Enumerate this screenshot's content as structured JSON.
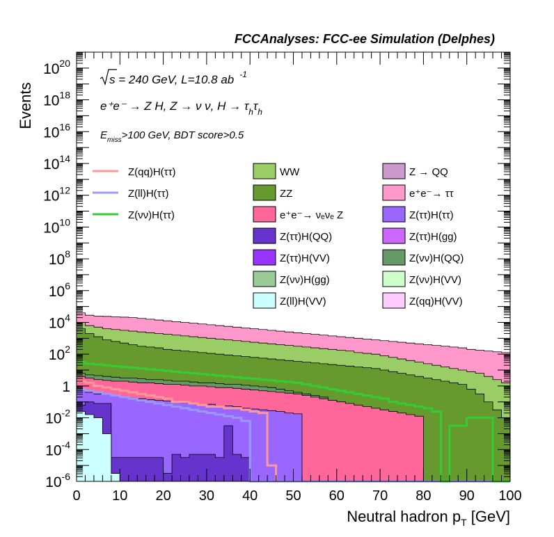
{
  "header": "FCCAnalyses: FCC-ee Simulation (Delphes)",
  "annotations": {
    "sqrt_s": "s",
    "energy_lumi": " = 240 GeV, L=10.8 ab",
    "lumi_exp": "-1",
    "process_line": "e⁺e⁻ → Z H, Z → ν ν, H → τ",
    "tau_sub": "h",
    "tau2": "τ",
    "tau2_sub": "h",
    "cut_E": "E",
    "cut_E_sub": "miss",
    "cut_rest": ">100 GeV, BDT score>0.5"
  },
  "colors": {
    "WW": "#9ACD66",
    "ZZ": "#66992E",
    "Z_QQ": "#CC99CC",
    "ee_tautau": "#FF99CC",
    "nuenue_Z": "#FF6699",
    "Ztautau_Htautau": "#9966FF",
    "Ztautau_HQQ": "#6633CC",
    "Ztautau_Hgg": "#CC66FF",
    "Ztautau_HVV": "#9933FF",
    "Znunu_HQQ": "#669966",
    "Znunu_Hgg": "#99CC99",
    "Znunu_HVV": "#CCFFCC",
    "Zll_HVV": "#CCFFFF",
    "Zqq_HVV": "#FFCCFF",
    "sig_qq": "#FF9999",
    "sig_ll": "#9999FF",
    "sig_nunu": "#33CC33"
  },
  "legend": {
    "lines": [
      {
        "label": "Z(qq)H(ττ)",
        "color": "#FF9999"
      },
      {
        "label": "Z(ll)H(ττ)",
        "color": "#9999FF"
      },
      {
        "label": "Z(νν)H(ττ)",
        "color": "#33CC33"
      }
    ],
    "boxes_col1": [
      {
        "label": "WW",
        "color": "#9ACD66"
      },
      {
        "label": "ZZ",
        "color": "#66992E"
      },
      {
        "label": "e⁺e⁻→ νₑνₑ Z",
        "color": "#FF6699"
      },
      {
        "label": "Z(ττ)H(QQ)",
        "color": "#6633CC"
      },
      {
        "label": "Z(ττ)H(VV)",
        "color": "#9933FF"
      },
      {
        "label": "Z(νν)H(gg)",
        "color": "#99CC99"
      },
      {
        "label": "Z(ll)H(VV)",
        "color": "#CCFFFF"
      }
    ],
    "boxes_col2": [
      {
        "label": "Z → QQ",
        "color": "#CC99CC"
      },
      {
        "label": "e⁺e⁻→ ττ",
        "color": "#FF99CC"
      },
      {
        "label": "Z(ττ)H(ττ)",
        "color": "#9966FF"
      },
      {
        "label": "Z(ττ)H(gg)",
        "color": "#CC66FF"
      },
      {
        "label": "Z(νν)H(QQ)",
        "color": "#669966"
      },
      {
        "label": "Z(νν)H(VV)",
        "color": "#CCFFCC"
      },
      {
        "label": "Z(qq)H(VV)",
        "color": "#FFCCFF"
      }
    ]
  },
  "chart_data": {
    "type": "area",
    "title": "",
    "xlabel": "Neutral hadron p",
    "xlabel_sub": "T",
    "xlabel_unit": " [GeV]",
    "ylabel": "Events",
    "xlim": [
      0,
      100
    ],
    "ylim": [
      1e-06,
      1e+21
    ],
    "ylog": true,
    "bins": 50,
    "xticks": [
      "0",
      "10",
      "20",
      "30",
      "40",
      "50",
      "60",
      "70",
      "80",
      "90",
      "100"
    ],
    "yticks": [
      {
        "v": 1e-06,
        "base": "10",
        "exp": "-6"
      },
      {
        "v": 0.0001,
        "base": "10",
        "exp": "-4"
      },
      {
        "v": 0.01,
        "base": "10",
        "exp": "-2"
      },
      {
        "v": 1,
        "base": "1",
        "exp": ""
      },
      {
        "v": 100.0,
        "base": "10",
        "exp": "2"
      },
      {
        "v": 10000.0,
        "base": "10",
        "exp": "4"
      },
      {
        "v": 1000000.0,
        "base": "10",
        "exp": "6"
      },
      {
        "v": 100000000.0,
        "base": "10",
        "exp": "8"
      },
      {
        "v": 10000000000.0,
        "base": "10",
        "exp": "10"
      },
      {
        "v": 1000000000000.0,
        "base": "10",
        "exp": "12"
      },
      {
        "v": 100000000000000.0,
        "base": "10",
        "exp": "14"
      },
      {
        "v": 1e+16,
        "base": "10",
        "exp": "16"
      },
      {
        "v": 1e+18,
        "base": "10",
        "exp": "18"
      },
      {
        "v": 1e+20,
        "base": "10",
        "exp": "20"
      }
    ],
    "stack_totals_log10": [
      4.6,
      4.45,
      4.4,
      4.38,
      4.35,
      4.33,
      4.3,
      4.25,
      4.2,
      4.15,
      4.1,
      4.05,
      4.0,
      3.95,
      3.9,
      3.85,
      3.8,
      3.75,
      3.7,
      3.65,
      3.6,
      3.55,
      3.5,
      3.45,
      3.4,
      3.35,
      3.3,
      3.25,
      3.2,
      3.15,
      3.1,
      3.05,
      3.0,
      2.95,
      2.9,
      2.85,
      2.8,
      2.75,
      2.7,
      2.65,
      2.6,
      2.55,
      2.5,
      2.45,
      2.4,
      2.3,
      2.25,
      2.2,
      2.15,
      2.1
    ],
    "layers_log10": [
      {
        "name": "Z(ll)H(VV)",
        "color": "#CCFFFF",
        "values": [
          -1.6,
          -1.8,
          -2.0,
          -3.0,
          -5.5,
          -6.5,
          -6.5,
          -6.5,
          -6.5,
          -6.5,
          -6.5,
          -6.5,
          -6.5,
          -6.5,
          -6.5,
          -6.5,
          -6.5,
          -6.5,
          -6.5,
          -6.5,
          -6.5,
          -6.5,
          -6.5,
          -6.5,
          -6.5,
          -6.5,
          -6.5,
          -6.5,
          -6.5,
          -6.5,
          -6.5,
          -6.5,
          -6.5,
          -6.5,
          -6.5,
          -6.5,
          -6.5,
          -6.5,
          -6.5,
          -6.5,
          -6.5,
          -6.5,
          -6.5,
          -6.5,
          -6.5,
          -6.5,
          -6.5,
          -6.5,
          -6.5,
          -6.5
        ]
      },
      {
        "name": "Z(ττ)H(QQ)",
        "color": "#6633CC",
        "values": [
          -1.2,
          -1.0,
          -1.1,
          -1.1,
          -4.5,
          -4.5,
          -4.5,
          -4.5,
          -4.5,
          -4.5,
          -5.5,
          -4.3,
          -4.5,
          -4.3,
          -4.3,
          -4.3,
          -4.5,
          -2.5,
          -4.3,
          -4.5,
          -6.5,
          -6.5,
          -6.5,
          -6.5,
          -6.5,
          -6.5,
          -6.5,
          -6.5,
          -6.5,
          -6.5,
          -6.5,
          -6.5,
          -6.5,
          -6.5,
          -6.5,
          -6.5,
          -6.5,
          -6.5,
          -6.5,
          -6.5,
          -6.5,
          -6.5,
          -6.5,
          -6.5,
          -6.5,
          -6.5,
          -6.5,
          -6.5,
          -6.5,
          -6.5
        ]
      },
      {
        "name": "Z(ττ)H(ττ)",
        "color": "#9966FF",
        "values": [
          -0.2,
          -0.4,
          -0.5,
          -0.55,
          -0.6,
          -0.7,
          -0.75,
          -0.8,
          -0.85,
          -0.9,
          -0.95,
          -1.0,
          -1.05,
          -1.1,
          -1.2,
          -1.15,
          -1.3,
          -1.25,
          -1.3,
          -1.4,
          -1.45,
          -1.5,
          -1.55,
          -1.6,
          -1.7,
          -1.75,
          -6.5,
          -6.5,
          -6.5,
          -6.5,
          -6.5,
          -6.5,
          -6.5,
          -6.5,
          -6.5,
          -6.5,
          -6.5,
          -6.5,
          -6.5,
          -6.5,
          -6.5,
          -6.5,
          -6.5,
          -6.5,
          -6.5,
          -6.5,
          -6.5,
          -6.5,
          -6.5,
          -6.5
        ]
      },
      {
        "name": "e⁺e⁻→ νₑνₑ Z",
        "color": "#FF6699",
        "values": [
          0.6,
          0.5,
          0.4,
          0.35,
          0.3,
          0.3,
          0.25,
          0.2,
          0.2,
          0.15,
          0.1,
          0.1,
          0.05,
          0.0,
          0.0,
          -0.05,
          -0.1,
          -0.1,
          -0.15,
          -0.2,
          -0.25,
          -0.3,
          -0.35,
          -0.4,
          -0.45,
          -0.5,
          -0.6,
          -0.7,
          -0.8,
          -0.9,
          -1.0,
          -1.1,
          -1.2,
          -1.3,
          -1.4,
          -1.5,
          -1.6,
          -1.7,
          -1.8,
          -1.9,
          -6.5,
          -6.5,
          -6.5,
          -6.5,
          -6.5,
          -6.5,
          -6.5,
          -6.5,
          -6.5,
          -6.5
        ]
      },
      {
        "name": "Z(νν)H(QQ)",
        "color": "#669966",
        "values": [
          0.8,
          0.7,
          0.65,
          0.6,
          0.55,
          0.5,
          0.5,
          0.45,
          0.4,
          0.4,
          0.35,
          0.3,
          0.3,
          0.25,
          0.2,
          0.2,
          0.15,
          0.1,
          0.1,
          0.05,
          0.0,
          -0.05,
          -0.1,
          -0.2,
          -0.3,
          -0.4,
          -0.5,
          -0.6,
          -0.7,
          -0.9,
          -1.0,
          -1.2,
          -1.4,
          -1.6,
          -1.8,
          -2.0,
          -2.5,
          -3.0,
          -4.0,
          -6.5,
          -6.5,
          -6.5,
          -6.5,
          -6.5,
          -6.5,
          -6.5,
          -6.5,
          -6.5,
          -6.5,
          -6.5
        ]
      },
      {
        "name": "ZZ",
        "color": "#66992E",
        "values": [
          3.6,
          3.3,
          3.1,
          2.9,
          2.8,
          2.7,
          2.6,
          2.5,
          2.45,
          2.4,
          2.3,
          2.25,
          2.2,
          2.15,
          2.1,
          2.05,
          2.0,
          1.95,
          1.9,
          1.85,
          1.8,
          1.75,
          1.7,
          1.65,
          1.6,
          1.55,
          1.5,
          1.45,
          1.4,
          1.35,
          1.3,
          1.25,
          1.2,
          1.15,
          1.1,
          1.0,
          0.9,
          0.8,
          0.7,
          0.6,
          0.5,
          0.4,
          0.3,
          0.2,
          0.1,
          -0.2,
          -0.5,
          -1.0,
          -1.5,
          -2.0
        ]
      },
      {
        "name": "WW",
        "color": "#9ACD66",
        "values": [
          4.0,
          3.8,
          3.7,
          3.6,
          3.55,
          3.5,
          3.45,
          3.4,
          3.35,
          3.3,
          3.25,
          3.2,
          3.15,
          3.1,
          3.05,
          3.0,
          2.95,
          2.9,
          2.85,
          2.8,
          2.75,
          2.7,
          2.65,
          2.6,
          2.55,
          2.5,
          2.45,
          2.4,
          2.35,
          2.3,
          2.25,
          2.2,
          2.1,
          2.05,
          2.0,
          1.9,
          1.8,
          1.7,
          1.6,
          1.5,
          1.4,
          1.3,
          1.2,
          1.1,
          1.0,
          0.9,
          0.8,
          0.6,
          0.4,
          0.2
        ]
      },
      {
        "name": "e⁺e⁻→ ττ",
        "color": "#FF99CC",
        "values": [
          4.6,
          4.45,
          4.4,
          4.38,
          4.35,
          4.33,
          4.3,
          4.25,
          4.2,
          4.15,
          4.1,
          4.05,
          4.0,
          3.95,
          3.9,
          3.85,
          3.8,
          3.75,
          3.7,
          3.65,
          3.6,
          3.55,
          3.5,
          3.45,
          3.4,
          3.35,
          3.3,
          3.25,
          3.2,
          3.15,
          3.1,
          3.05,
          3.0,
          2.95,
          2.9,
          2.85,
          2.8,
          2.75,
          2.7,
          2.65,
          2.6,
          2.55,
          2.5,
          2.45,
          2.4,
          2.3,
          2.25,
          2.2,
          2.15,
          2.1
        ]
      }
    ],
    "signal_lines_log10": [
      {
        "name": "Z(qq)H(ττ)",
        "color": "#FF9999",
        "values": [
          0.3,
          0.2,
          0.0,
          -0.1,
          -0.2,
          -0.3,
          -0.4,
          -0.5,
          -0.6,
          -0.7,
          -0.8,
          -1.0,
          -1.0,
          -1.1,
          -1.2,
          -1.3,
          -1.3,
          -1.4,
          -1.4,
          -1.5,
          -1.6,
          -1.7,
          -5.0,
          -6.5,
          -6.5,
          -6.5,
          -6.5,
          -6.5,
          -6.5,
          -6.5,
          -6.5,
          -6.5,
          -6.5,
          -6.5,
          -6.5,
          -6.5,
          -6.5,
          -6.5,
          -6.5,
          -6.5,
          -6.5,
          -6.5,
          -6.5,
          -6.5,
          -6.5,
          -6.5,
          -6.5,
          -6.5,
          -6.5,
          -6.5
        ]
      },
      {
        "name": "Z(ll)H(ττ)",
        "color": "#9999FF",
        "values": [
          -0.2,
          -0.3,
          -0.4,
          -0.5,
          -0.6,
          -0.7,
          -0.8,
          -0.9,
          -1.0,
          -1.1,
          -1.2,
          -1.3,
          -1.4,
          -1.5,
          -1.6,
          -1.7,
          -1.8,
          -1.9,
          -2.0,
          -2.2,
          -6.5,
          -6.5,
          -6.5,
          -6.5,
          -6.5,
          -6.5,
          -6.5,
          -6.5,
          -6.5,
          -6.5,
          -6.5,
          -6.5,
          -6.5,
          -6.5,
          -6.5,
          -6.5,
          -6.5,
          -6.5,
          -6.5,
          -6.5,
          -6.5,
          -6.5,
          -6.5,
          -6.5,
          -6.5,
          -6.5,
          -6.5,
          -6.5,
          -6.5,
          -6.5
        ]
      },
      {
        "name": "Z(νν)H(ττ)",
        "color": "#33CC33",
        "values": [
          1.5,
          1.4,
          1.35,
          1.3,
          1.25,
          1.2,
          1.15,
          1.1,
          1.05,
          1.0,
          0.95,
          0.9,
          0.85,
          0.8,
          0.75,
          0.7,
          0.65,
          0.6,
          0.55,
          0.5,
          0.45,
          0.4,
          0.35,
          0.3,
          0.25,
          0.2,
          0.1,
          0.0,
          -0.1,
          -0.2,
          -0.3,
          -0.4,
          -0.5,
          -0.6,
          -0.7,
          -0.8,
          -1.0,
          -1.1,
          -1.2,
          -1.3,
          -1.4,
          -1.6,
          -6.5,
          -2.5,
          -2.5,
          -2.0,
          -2.0,
          -2.0,
          -6.5,
          -6.5
        ]
      }
    ]
  }
}
